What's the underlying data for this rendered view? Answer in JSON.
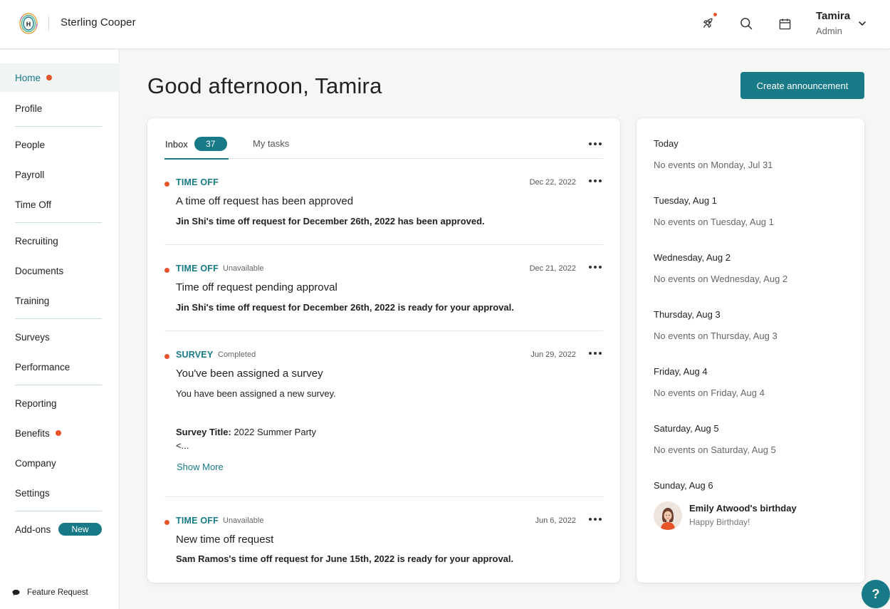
{
  "header": {
    "company_name": "Sterling Cooper",
    "logo_letter": "H",
    "icons": [
      "rocket-icon",
      "search-icon",
      "calendar-icon"
    ],
    "user": {
      "name": "Tamira",
      "role": "Admin"
    }
  },
  "sidebar": {
    "items": [
      {
        "label": "Home",
        "dot": true,
        "active": true
      },
      {
        "label": "Profile"
      },
      {
        "label": "People"
      },
      {
        "label": "Payroll"
      },
      {
        "label": "Time Off"
      },
      {
        "label": "Recruiting"
      },
      {
        "label": "Documents"
      },
      {
        "label": "Training"
      },
      {
        "label": "Surveys"
      },
      {
        "label": "Performance"
      },
      {
        "label": "Reporting"
      },
      {
        "label": "Benefits",
        "dot": true
      },
      {
        "label": "Company"
      },
      {
        "label": "Settings"
      },
      {
        "label": "Add-ons",
        "badge": "New"
      }
    ],
    "feature_request": "Feature Request"
  },
  "main": {
    "greeting": "Good afternoon, Tamira",
    "create_button": "Create announcement"
  },
  "inbox": {
    "tabs": [
      {
        "label": "Inbox",
        "count": "37"
      },
      {
        "label": "My tasks"
      }
    ],
    "items": [
      {
        "category": "TIME OFF",
        "status": "",
        "date": "Dec 22, 2022",
        "title": "A time off request has been approved",
        "body": "Jin Shi's time off request for December 26th, 2022 has been approved."
      },
      {
        "category": "TIME OFF",
        "status": "Unavailable",
        "date": "Dec 21, 2022",
        "title": "Time off request pending approval",
        "body": "Jin Shi's time off request for December 26th, 2022 is ready for your approval."
      },
      {
        "category": "SURVEY",
        "status": "Completed",
        "date": "Jun 29, 2022",
        "title": "You've been assigned a survey",
        "body": "You have been assigned a new survey.",
        "survey_label": "Survey Title:",
        "survey_value": "2022 Summer Party",
        "survey_trunc": "<...",
        "show_more": "Show More"
      },
      {
        "category": "TIME OFF",
        "status": "Unavailable",
        "date": "Jun 6, 2022",
        "title": "New time off request",
        "body": "Sam Ramos's time off request for June 15th, 2022 is ready for your approval."
      }
    ]
  },
  "events": {
    "days": [
      {
        "day": "Today",
        "note": "No events on Monday, Jul 31"
      },
      {
        "day": "Tuesday, Aug 1",
        "note": "No events on Tuesday, Aug 1"
      },
      {
        "day": "Wednesday, Aug 2",
        "note": "No events on Wednesday, Aug 2"
      },
      {
        "day": "Thursday, Aug 3",
        "note": "No events on Thursday, Aug 3"
      },
      {
        "day": "Friday, Aug 4",
        "note": "No events on Friday, Aug 4"
      },
      {
        "day": "Saturday, Aug 5",
        "note": "No events on Saturday, Aug 5"
      },
      {
        "day": "Sunday, Aug 6",
        "note": ""
      }
    ],
    "birthday": {
      "title": "Emily Atwood's birthday",
      "subtitle": "Happy Birthday!"
    }
  },
  "help": {
    "label": "?"
  },
  "colors": {
    "accent": "#177a86",
    "notification": "#e8542a",
    "background": "#f6f6f5"
  }
}
